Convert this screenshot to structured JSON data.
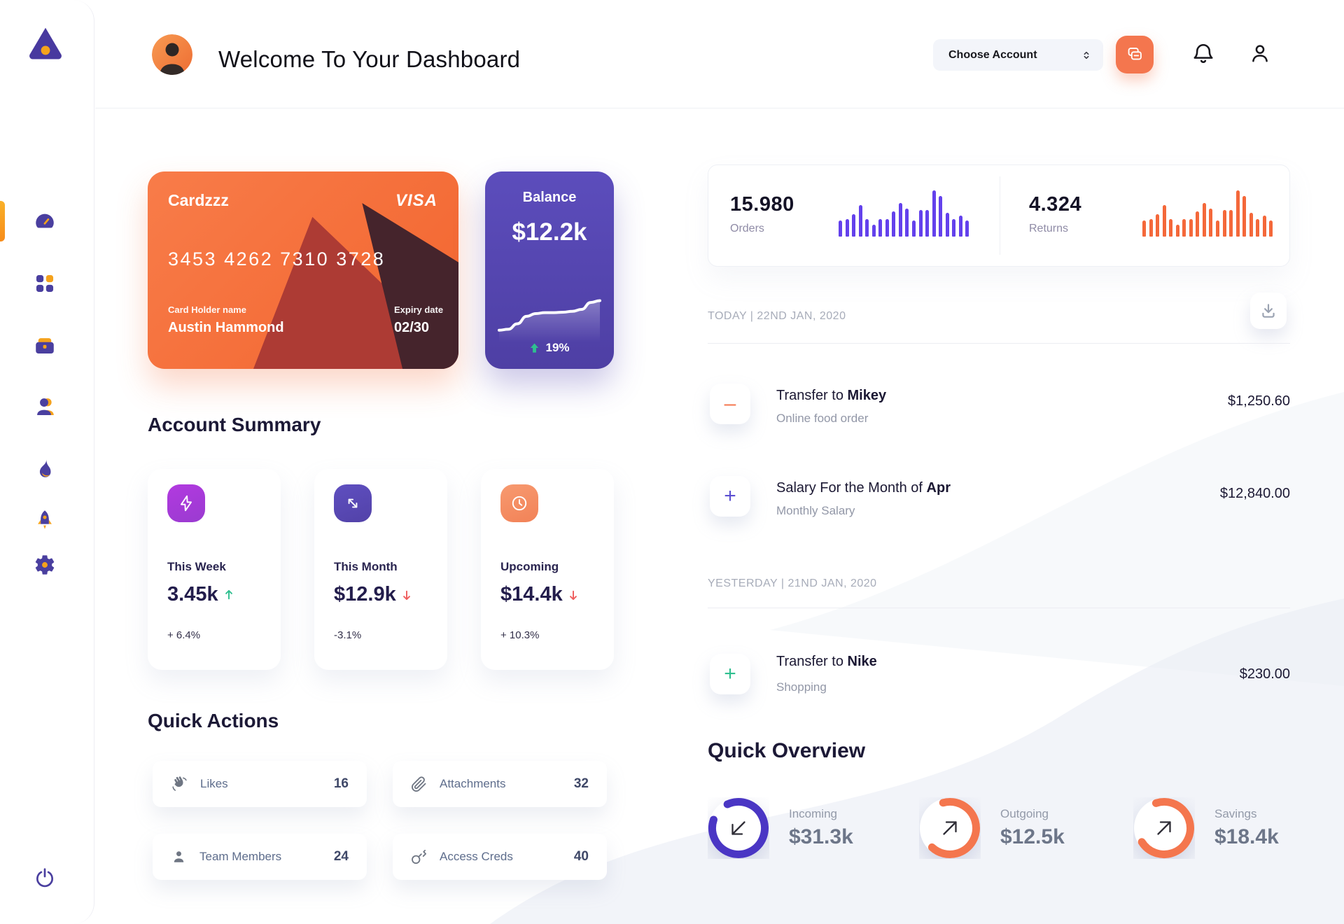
{
  "header": {
    "title": "Welcome To Your Dashboard",
    "account_select_label": "Choose Account"
  },
  "credit_card": {
    "name": "Cardzzz",
    "brand": "VISA",
    "number": "3453 4262 7310 3728",
    "holder_label": "Card Holder name",
    "holder_name": "Austin Hammond",
    "expiry_label": "Expiry date",
    "expiry": "02/30"
  },
  "balance_card": {
    "label": "Balance",
    "value": "$12.2k",
    "change": "19%"
  },
  "stats": {
    "orders": {
      "value": "15.980",
      "label": "Orders"
    },
    "returns": {
      "value": "4.324",
      "label": "Returns"
    }
  },
  "account_summary": {
    "title": "Account Summary",
    "cards": [
      {
        "label": "This Week",
        "value": "3.45k",
        "trend": "up",
        "change": "+ 6.4%"
      },
      {
        "label": "This Month",
        "value": "$12.9k",
        "trend": "down",
        "change": "-3.1%"
      },
      {
        "label": "Upcoming",
        "value": "$14.4k",
        "trend": "down",
        "change": "+ 10.3%"
      }
    ]
  },
  "quick_actions": {
    "title": "Quick Actions",
    "items": [
      {
        "icon": "wave-hand-icon",
        "label": "Likes",
        "count": "16"
      },
      {
        "icon": "paperclip-icon",
        "label": "Attachments",
        "count": "32"
      },
      {
        "icon": "person-icon",
        "label": "Team Members",
        "count": "24"
      },
      {
        "icon": "key-icon",
        "label": "Access Creds",
        "count": "40"
      }
    ]
  },
  "transactions": {
    "groups": [
      {
        "date": "TODAY | 22ND JAN, 2020",
        "items": [
          {
            "symbol": "–",
            "symbol_color": "#f4764e",
            "title_prefix": "Transfer to ",
            "title_bold": "Mikey",
            "subtitle": "Online food order",
            "amount": "$1,250.60"
          },
          {
            "symbol": "+",
            "symbol_color": "#5b4fd1",
            "title_prefix": "Salary For the Month of ",
            "title_bold": "Apr",
            "subtitle": "Monthly Salary",
            "amount": "$12,840.00"
          }
        ]
      },
      {
        "date": "YESTERDAY | 21ND JAN, 2020",
        "items": [
          {
            "symbol": "+",
            "symbol_color": "#2fbf8f",
            "title_prefix": "Transfer to ",
            "title_bold": "Nike",
            "subtitle": "Shopping",
            "amount": "$230.00"
          }
        ]
      }
    ]
  },
  "quick_overview": {
    "title": "Quick Overview",
    "items": [
      {
        "label": "Incoming",
        "value": "$31.3k",
        "percent": 87,
        "color": "#4a36c4",
        "arrow": "down-left"
      },
      {
        "label": "Outgoing",
        "value": "$12.5k",
        "percent": 66,
        "color": "#f4764e",
        "arrow": "up-right"
      },
      {
        "label": "Savings",
        "value": "$18.4k",
        "percent": 71,
        "color": "#f4764e",
        "arrow": "up-right"
      }
    ]
  },
  "chart_data": [
    {
      "type": "bar",
      "name": "orders-activity",
      "values": [
        35,
        38,
        48,
        68,
        38,
        25,
        38,
        38,
        55,
        72,
        60,
        35,
        58,
        58,
        100,
        88,
        52,
        38,
        45,
        35
      ],
      "color": "#6341ec"
    },
    {
      "type": "bar",
      "name": "returns-activity",
      "values": [
        35,
        38,
        48,
        68,
        38,
        25,
        38,
        38,
        55,
        72,
        60,
        35,
        58,
        58,
        100,
        88,
        52,
        38,
        45,
        35
      ],
      "color": "#f4683a"
    },
    {
      "type": "line",
      "name": "balance-trend",
      "values": [
        8,
        10,
        22,
        38,
        44,
        46,
        46,
        47,
        49,
        53,
        68,
        72
      ],
      "color": "#ffffff"
    },
    {
      "type": "donut",
      "name": "quick-overview-rings",
      "labels": [
        "Incoming",
        "Outgoing",
        "Savings"
      ],
      "values": [
        87,
        66,
        71
      ],
      "colors": [
        "#4a36c4",
        "#f4764e",
        "#f4764e"
      ]
    }
  ]
}
